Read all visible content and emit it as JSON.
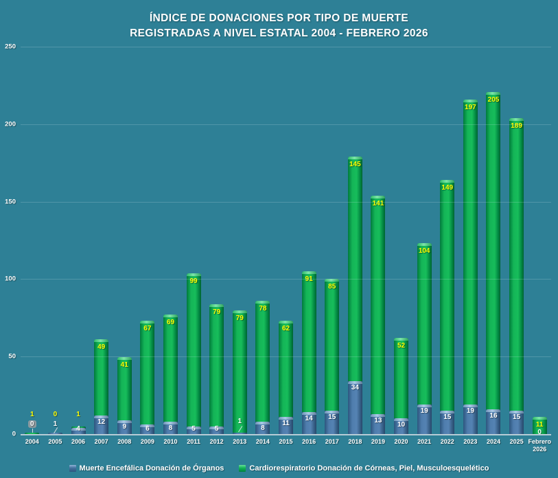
{
  "title": {
    "line1": "ÍNDICE DE DONACIONES POR TIPO DE MUERTE",
    "line2": "REGISTRADAS A NIVEL ESTATAL 2004 - FEBRERO 2026"
  },
  "colors": {
    "background": "#2e8096",
    "blue_series": "#4f7dad",
    "green_series": "#12b456",
    "blue_label": "#ffffff",
    "green_label": "#ffff00",
    "axis_line": "#b7ccd6"
  },
  "legend": [
    {
      "label": "Muerte Encefálica Donación de Órganos",
      "color": "#4f7dad"
    },
    {
      "label": "Cardiorespiratorio Donación de Córneas, Piel, Musculoesquelético",
      "color": "#12b456"
    }
  ],
  "chart_data": {
    "type": "bar",
    "stacked": true,
    "title": "ÍNDICE DE DONACIONES POR TIPO DE MUERTE REGISTRADAS A NIVEL ESTATAL 2004 - FEBRERO 2026",
    "categories": [
      "2004",
      "2005",
      "2006",
      "2007",
      "2008",
      "2009",
      "2010",
      "2011",
      "2012",
      "2013",
      "2014",
      "2015",
      "2016",
      "2017",
      "2018",
      "2019",
      "2020",
      "2021",
      "2022",
      "2023",
      "2024",
      "2025",
      "Febrero 2026"
    ],
    "series": [
      {
        "name": "Muerte Encefálica Donación de Órganos",
        "color": "#4f7dad",
        "values": [
          0,
          1,
          4,
          12,
          9,
          6,
          8,
          5,
          5,
          1,
          8,
          11,
          14,
          15,
          34,
          13,
          10,
          19,
          15,
          19,
          16,
          15,
          0
        ]
      },
      {
        "name": "Cardiorespiratorio Donación de Córneas, Piel, Musculoesquelético",
        "color": "#12b456",
        "values": [
          1,
          0,
          1,
          49,
          41,
          67,
          69,
          99,
          79,
          79,
          78,
          62,
          91,
          85,
          145,
          141,
          52,
          104,
          149,
          197,
          205,
          189,
          11
        ]
      }
    ],
    "xlabel": "",
    "ylabel": "",
    "ylim": [
      0,
      250
    ],
    "yticks": [
      0,
      50,
      100,
      150,
      200,
      250
    ],
    "grid": true,
    "legend_position": "bottom",
    "label_pos": {
      "blue": [
        "pill",
        "leader",
        "inside",
        "inside",
        "inside",
        "inside",
        "inside",
        "inside",
        "inside",
        "leader",
        "inside",
        "inside",
        "inside",
        "inside",
        "inside",
        "inside",
        "inside",
        "inside",
        "inside",
        "inside",
        "inside",
        "inside",
        "base"
      ],
      "green": [
        "above",
        "above",
        "above",
        "inside",
        "inside",
        "inside",
        "inside",
        "inside",
        "inside",
        "inside",
        "inside",
        "inside",
        "inside",
        "inside",
        "inside",
        "inside",
        "inside",
        "inside",
        "inside",
        "inside",
        "inside",
        "inside",
        "inside"
      ]
    }
  }
}
